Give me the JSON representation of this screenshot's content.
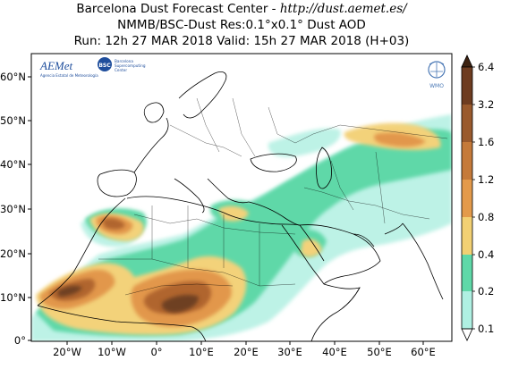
{
  "header": {
    "line1_prefix": "Barcelona Dust Forecast Center - ",
    "line1_url": "http://dust.aemet.es/",
    "line2": "NMMB/BSC-Dust   Res:0.1°x0.1°   Dust AOD",
    "line3": "Run: 12h 27 MAR 2018   Valid: 15h 27 MAR 2018 (H+03)"
  },
  "logos": {
    "aemet": "AEMet",
    "aemet_sub": "Agencia Estatal de Meteorología",
    "bsc": "BSC",
    "bsc_text_1": "Barcelona",
    "bsc_text_2": "Supercomputing",
    "bsc_text_3": "Center",
    "wmo": "WMO"
  },
  "axes": {
    "lat_labels": [
      "60°N",
      "50°N",
      "40°N",
      "30°N",
      "20°N",
      "10°N",
      "0°"
    ],
    "lon_labels": [
      "20°W",
      "10°W",
      "0°",
      "10°E",
      "20°E",
      "30°E",
      "40°E",
      "50°E",
      "60°E"
    ]
  },
  "colorbar": {
    "labels": [
      "6.4",
      "3.2",
      "1.6",
      "1.2",
      "0.8",
      "0.4",
      "0.2",
      "0.1"
    ],
    "colors": [
      "#3d2211",
      "#6e3c20",
      "#9a5a2d",
      "#c57a3a",
      "#e39a4b",
      "#f2d073",
      "#c8e8a0",
      "#5fd8a8",
      "#aff0e2"
    ]
  },
  "palette": {
    "ocean": "#ffffff",
    "low": "#bdf2e6",
    "mid": "#5fd8a8",
    "yellow": "#f3d27a",
    "orange": "#e2974b",
    "brown": "#b0652f",
    "darkbrown": "#6e3f22",
    "boundary": "#000000"
  }
}
